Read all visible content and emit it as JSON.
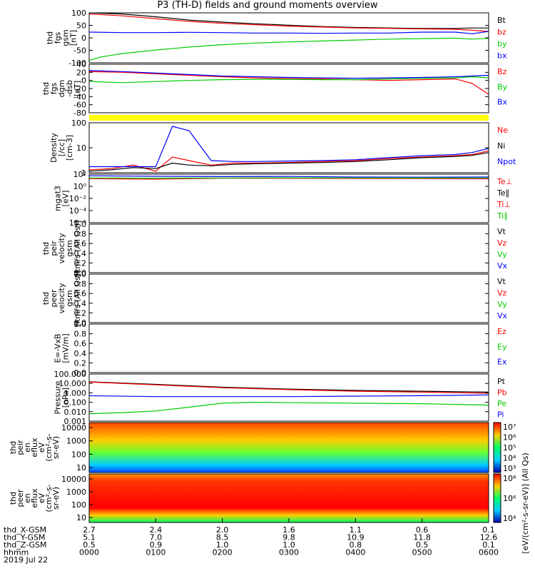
{
  "title": "P3 (TH-D) fields and ground moments overview",
  "chart_data": {
    "type": "line",
    "x": {
      "ticks": [
        "0000",
        "0100",
        "0200",
        "0300",
        "0400",
        "0500",
        "0600"
      ],
      "xlim": [
        0,
        360
      ],
      "unit": "minutes"
    },
    "panels": [
      {
        "ylabel": [
          "thd",
          "fgs",
          "gsm",
          "[nT]"
        ],
        "yticks": [
          "100",
          "50",
          "0",
          "-50",
          "-100"
        ],
        "ylim": [
          -110,
          105
        ],
        "legend": [
          {
            "name": "Bt",
            "color": "#000000"
          },
          {
            "name": "bz",
            "color": "#ff0000"
          },
          {
            "name": "by",
            "color": "#00cc00"
          },
          {
            "name": "bx",
            "color": "#0000ff"
          }
        ],
        "series": [
          {
            "name": "Bt",
            "color": "#000000",
            "x": [
              0,
              30,
              60,
              90,
              120,
              150,
              180,
              210,
              240,
              270,
              300,
              330,
              345,
              360
            ],
            "y": [
              105,
              100,
              88,
              74,
              65,
              58,
              52,
              46,
              42,
              40,
              38,
              38,
              40,
              40
            ]
          },
          {
            "name": "bz",
            "color": "#ff0000",
            "x": [
              0,
              30,
              60,
              90,
              120,
              150,
              180,
              210,
              240,
              270,
              300,
              330,
              345,
              360
            ],
            "y": [
              100,
              92,
              80,
              68,
              60,
              54,
              48,
              44,
              40,
              38,
              36,
              34,
              30,
              25
            ]
          },
          {
            "name": "by",
            "color": "#00cc00",
            "x": [
              0,
              10,
              30,
              60,
              90,
              120,
              150,
              180,
              210,
              240,
              270,
              300,
              330,
              345,
              360
            ],
            "y": [
              -100,
              -85,
              -70,
              -55,
              -42,
              -32,
              -25,
              -20,
              -16,
              -12,
              -8,
              -6,
              -4,
              -8,
              -5
            ]
          },
          {
            "name": "bx",
            "color": "#0000ff",
            "x": [
              0,
              30,
              60,
              90,
              120,
              150,
              180,
              210,
              240,
              270,
              300,
              330,
              345,
              360
            ],
            "y": [
              22,
              20,
              20,
              21,
              20,
              18,
              18,
              17,
              18,
              18,
              22,
              22,
              15,
              25
            ]
          }
        ]
      },
      {
        "ylabel": [
          "thd",
          "fgs",
          "dgm",
          "-dsb",
          "[nT]"
        ],
        "yticks": [
          "40",
          "20",
          "0",
          "-20",
          "-40",
          "-60",
          "-80"
        ],
        "ylim": [
          -90,
          42
        ],
        "legend": [
          {
            "name": "Bz",
            "color": "#ff0000"
          },
          {
            "name": "By",
            "color": "#00cc00"
          },
          {
            "name": "Bx",
            "color": "#0000ff"
          }
        ],
        "series": [
          {
            "name": "Bz",
            "color": "#ff0000",
            "x": [
              0,
              30,
              60,
              90,
              120,
              150,
              180,
              210,
              240,
              270,
              300,
              330,
              345,
              360
            ],
            "y": [
              22,
              20,
              16,
              12,
              8,
              5,
              3,
              2,
              0,
              -2,
              0,
              2,
              -10,
              -40
            ]
          },
          {
            "name": "By",
            "color": "#00cc00",
            "x": [
              0,
              30,
              60,
              90,
              120,
              150,
              180,
              210,
              240,
              270,
              300,
              330,
              345,
              360
            ],
            "y": [
              -5,
              -8,
              -5,
              -2,
              0,
              1,
              1,
              0,
              0,
              2,
              4,
              5,
              8,
              5
            ]
          },
          {
            "name": "Bx",
            "color": "#0000ff",
            "x": [
              0,
              30,
              60,
              90,
              120,
              150,
              180,
              210,
              240,
              270,
              300,
              330,
              345,
              360
            ],
            "y": [
              25,
              22,
              18,
              14,
              10,
              8,
              6,
              5,
              4,
              5,
              6,
              8,
              10,
              12
            ]
          }
        ]
      },
      {
        "ylabel": [
          "Density",
          "[/cc]",
          "[cm-3]"
        ],
        "yticks": [
          "100",
          "10",
          "1"
        ],
        "ylim": [
          0.5,
          150
        ],
        "log": true,
        "legend": [
          {
            "name": "Ne",
            "color": "#ff0000"
          },
          {
            "name": "Ni",
            "color": "#000000"
          },
          {
            "name": "Npot",
            "color": "#0000ff"
          }
        ],
        "series": [
          {
            "name": "Ne",
            "color": "#ff0000",
            "x": [
              0,
              20,
              40,
              60,
              75,
              90,
              110,
              130,
              150,
              180,
              210,
              240,
              270,
              300,
              330,
              345,
              360
            ],
            "y": [
              0.7,
              0.8,
              1.2,
              0.6,
              3,
              2,
              1.2,
              1.5,
              1.5,
              1.6,
              1.8,
              2,
              2.5,
              3,
              3.5,
              4,
              6
            ]
          },
          {
            "name": "Ni",
            "color": "#000000",
            "x": [
              0,
              20,
              40,
              60,
              75,
              90,
              110,
              130,
              150,
              180,
              210,
              240,
              270,
              300,
              330,
              345,
              360
            ],
            "y": [
              0.6,
              0.7,
              0.9,
              0.8,
              1.5,
              1.2,
              1.1,
              1.3,
              1.4,
              1.5,
              1.6,
              1.8,
              2.2,
              2.8,
              3.2,
              3.6,
              5
            ]
          },
          {
            "name": "Npot",
            "color": "#0000ff",
            "x": [
              0,
              20,
              40,
              60,
              75,
              90,
              110,
              130,
              150,
              180,
              210,
              240,
              270,
              300,
              330,
              345,
              360
            ],
            "y": [
              1,
              1,
              1,
              1,
              100,
              60,
              2,
              1.8,
              1.8,
              1.9,
              2,
              2.2,
              2.8,
              3.5,
              4,
              5,
              8
            ]
          }
        ]
      },
      {
        "ylabel": [
          "mgat3",
          "[eV]"
        ],
        "yticks": [
          "10²",
          "10⁰",
          "10⁻²",
          "10⁻⁴",
          "10⁻⁶"
        ],
        "ylim": [
          1e-06,
          1000
        ],
        "log": true,
        "legend": [
          {
            "name": "Te⊥",
            "color": "#ff0000"
          },
          {
            "name": "Te∥",
            "color": "#000000"
          },
          {
            "name": "Ti⊥",
            "color": "#ff0000"
          },
          {
            "name": "Ti∥",
            "color": "#00cc00"
          }
        ],
        "series": [
          {
            "name": "Ti",
            "color": "#0000ff",
            "x": [
              0,
              60,
              120,
              180,
              240,
              300,
              360
            ],
            "y": [
              500,
              400,
              350,
              380,
              300,
              280,
              300
            ]
          },
          {
            "name": "Te",
            "color": "#ff0000",
            "x": [
              0,
              60,
              120,
              180,
              240,
              300,
              360
            ],
            "y": [
              150,
              120,
              180,
              170,
              160,
              150,
              140
            ]
          },
          {
            "name": "Ti∥",
            "color": "#00cc00",
            "x": [
              0,
              60,
              120,
              180,
              240,
              300,
              360
            ],
            "y": [
              200,
              180,
              200,
              210,
              200,
              190,
              200
            ]
          }
        ]
      },
      {
        "ylabel": [
          "thd",
          "peir",
          "velocity",
          "gsm",
          "[km/s (All Qs)]"
        ],
        "yticks": [
          "1.0",
          "0.8",
          "0.6",
          "0.4",
          "0.2",
          "0.0"
        ],
        "ylim": [
          0,
          1
        ],
        "legend": [
          {
            "name": "Vt",
            "color": "#000000"
          },
          {
            "name": "Vz",
            "color": "#ff0000"
          },
          {
            "name": "Vy",
            "color": "#00cc00"
          },
          {
            "name": "Vx",
            "color": "#0000ff"
          }
        ],
        "series": []
      },
      {
        "ylabel": [
          "thd",
          "peer",
          "velocity",
          "gsm",
          "[km/s (All Qs)]"
        ],
        "yticks": [
          "1.0",
          "0.8",
          "0.6",
          "0.4",
          "0.2",
          "0.0"
        ],
        "ylim": [
          0,
          1
        ],
        "legend": [
          {
            "name": "Vt",
            "color": "#000000"
          },
          {
            "name": "Vz",
            "color": "#ff0000"
          },
          {
            "name": "Vy",
            "color": "#00cc00"
          },
          {
            "name": "Vx",
            "color": "#0000ff"
          }
        ],
        "series": []
      },
      {
        "ylabel": [
          "E=-VxB",
          "[mV/m]"
        ],
        "yticks": [
          "1.0",
          "0.8",
          "0.6",
          "0.4",
          "0.2",
          "0.0"
        ],
        "ylim": [
          0,
          1
        ],
        "legend": [
          {
            "name": "Ez",
            "color": "#ff0000"
          },
          {
            "name": "Ey",
            "color": "#00cc00"
          },
          {
            "name": "Ex",
            "color": "#0000ff"
          }
        ],
        "series": []
      },
      {
        "ylabel": [
          "Pressure",
          "[nPa]"
        ],
        "yticks": [
          "100.000",
          "10.000",
          "1.000",
          "0.100",
          "0.010",
          "0.001"
        ],
        "ylim": [
          0.001,
          100
        ],
        "log": true,
        "legend": [
          {
            "name": "Pt",
            "color": "#000000"
          },
          {
            "name": "Pb",
            "color": "#ff0000"
          },
          {
            "name": "Pe",
            "color": "#00cc00"
          },
          {
            "name": "Pi",
            "color": "#0000ff"
          }
        ],
        "series": [
          {
            "name": "Pt",
            "color": "#000000",
            "x": [
              0,
              60,
              120,
              180,
              240,
              300,
              360
            ],
            "y": [
              15,
              8,
              4,
              2.5,
              1.8,
              1.5,
              1.2
            ]
          },
          {
            "name": "Pb",
            "color": "#ff0000",
            "x": [
              0,
              60,
              120,
              180,
              240,
              300,
              360
            ],
            "y": [
              14,
              7,
              3.5,
              2.2,
              1.5,
              1.2,
              0.9
            ]
          },
          {
            "name": "Pe",
            "color": "#00cc00",
            "x": [
              0,
              30,
              60,
              90,
              120,
              150,
              180,
              240,
              300,
              360
            ],
            "y": [
              0.006,
              0.008,
              0.012,
              0.03,
              0.08,
              0.1,
              0.09,
              0.08,
              0.07,
              0.05
            ]
          },
          {
            "name": "Pi",
            "color": "#0000ff",
            "x": [
              0,
              60,
              120,
              180,
              240,
              300,
              360
            ],
            "y": [
              0.5,
              0.4,
              0.4,
              0.4,
              0.45,
              0.5,
              0.6
            ]
          }
        ]
      }
    ],
    "spectrograms": [
      {
        "ylabel": [
          "thd",
          "peir",
          "en",
          "eflux",
          "eV",
          "(cm²-s-",
          "sr-eV)"
        ],
        "yticks": [
          "10000",
          "1000",
          "100",
          "10"
        ],
        "log": true,
        "colorbar_ticks": [
          "10⁷",
          "10⁶",
          "10⁵",
          "10⁴",
          "10³"
        ],
        "colorbar_label": "[eV/(cm²-s-sr-eV)] (All Qs)"
      },
      {
        "ylabel": [
          "thd",
          "peer",
          "en",
          "eflux",
          "eV",
          "(cm²-s-",
          "sr-eV)"
        ],
        "yticks": [
          "10000",
          "1000",
          "100",
          "10"
        ],
        "log": true,
        "colorbar_ticks": [
          "10⁸",
          "10⁶",
          "10⁴"
        ],
        "colorbar_label": "[eV/(cm²-s-sr-eV)]"
      }
    ],
    "ephemeris": {
      "rows": [
        {
          "label": "thd_X-GSM",
          "values": [
            "2.7",
            "2.4",
            "2.0",
            "1.6",
            "1.1",
            "0.6",
            "0.1"
          ]
        },
        {
          "label": "thd_Y-GSM",
          "values": [
            "5.1",
            "7.0",
            "8.5",
            "9.8",
            "10.9",
            "11.8",
            "12.6"
          ]
        },
        {
          "label": "thd_Z-GSM",
          "values": [
            "0.5",
            "0.9",
            "1.0",
            "1.0",
            "0.8",
            "0.5",
            "0.1"
          ]
        },
        {
          "label": "hhmm",
          "values": [
            "0000",
            "0100",
            "0200",
            "0300",
            "0400",
            "0500",
            "0600"
          ]
        }
      ],
      "date": "2019 Jul 22"
    }
  }
}
